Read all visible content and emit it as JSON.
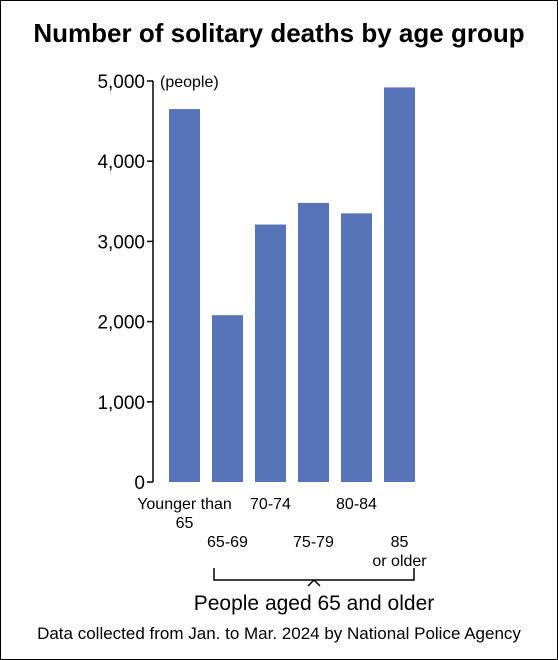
{
  "chart_data": {
    "type": "bar",
    "title": "Number of solitary deaths by age group",
    "unit": "(people)",
    "categories": [
      [
        "Younger than",
        "65"
      ],
      [
        "65-69"
      ],
      [
        "70-74"
      ],
      [
        "75-79"
      ],
      [
        "80-84"
      ],
      [
        "85",
        "or older"
      ]
    ],
    "values": [
      4650,
      2080,
      3210,
      3480,
      3350,
      4920
    ],
    "ylim": [
      0,
      5000
    ],
    "yticks": [
      0,
      1000,
      2000,
      3000,
      4000,
      5000
    ],
    "ytick_labels": [
      "0",
      "1,000",
      "2,000",
      "3,000",
      "4,000",
      "5,000"
    ],
    "bracket_label": "People aged 65 and older",
    "bar_color": "#5874b8",
    "grid": false,
    "legend": "none"
  },
  "source": "Data collected from Jan. to Mar. 2024 by National Police Agency"
}
